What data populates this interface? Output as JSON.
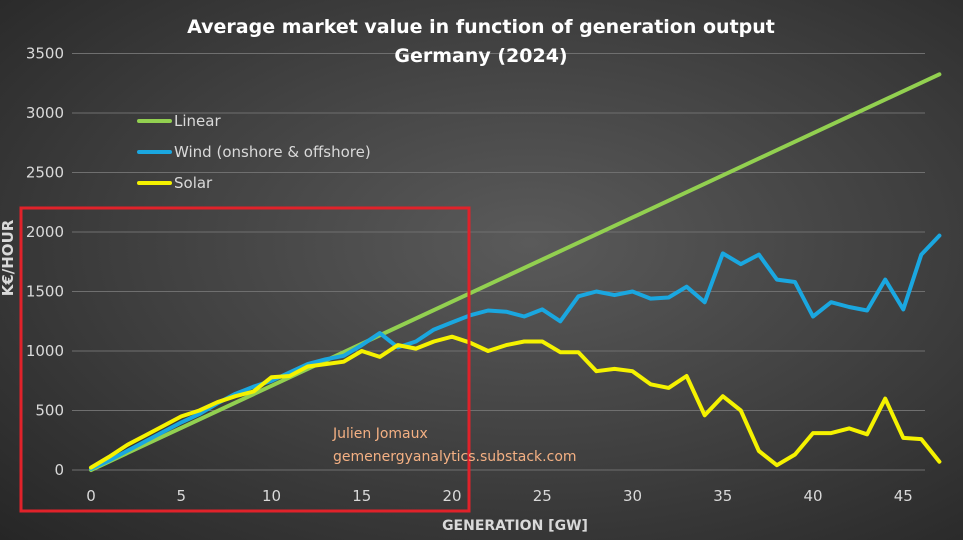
{
  "chart_data": {
    "type": "line",
    "title": "Average market value in function of generation output",
    "subtitle": "Germany (2024)",
    "xlabel": "GENERATION [GW]",
    "ylabel": "K€/HOUR",
    "xlim": [
      -1,
      47.5
    ],
    "ylim": [
      -100,
      3500
    ],
    "xticks": [
      0,
      5,
      10,
      15,
      20,
      25,
      30,
      35,
      40,
      45
    ],
    "yticks": [
      0,
      500,
      1000,
      1500,
      2000,
      2500,
      3000,
      3500
    ],
    "grid": "horizontal",
    "legend_position": "top-left",
    "series": [
      {
        "name": "Linear",
        "color": "#92d050",
        "x": [
          0,
          47
        ],
        "y": [
          0,
          3325
        ]
      },
      {
        "name": "Wind (onshore & offshore)",
        "color": "#1aa7e0",
        "x": [
          0,
          1,
          2,
          3,
          4,
          5,
          6,
          7,
          8,
          9,
          10,
          11,
          12,
          13,
          14,
          15,
          16,
          17,
          18,
          19,
          20,
          21,
          22,
          23,
          24,
          25,
          26,
          27,
          28,
          29,
          30,
          31,
          32,
          33,
          34,
          35,
          36,
          37,
          38,
          39,
          40,
          41,
          42,
          43,
          44,
          45,
          46,
          47
        ],
        "y": [
          10,
          80,
          160,
          240,
          320,
          400,
          470,
          560,
          640,
          700,
          750,
          820,
          890,
          930,
          960,
          1050,
          1150,
          1030,
          1080,
          1180,
          1240,
          1300,
          1340,
          1330,
          1290,
          1350,
          1250,
          1460,
          1500,
          1470,
          1500,
          1440,
          1450,
          1540,
          1410,
          1820,
          1730,
          1810,
          1600,
          1580,
          1290,
          1410,
          1370,
          1340,
          1600,
          1350,
          1810,
          1970
        ]
      },
      {
        "name": "Solar",
        "color": "#f5f200",
        "x": [
          0,
          1,
          2,
          3,
          4,
          5,
          6,
          7,
          8,
          9,
          10,
          11,
          12,
          13,
          14,
          15,
          16,
          17,
          18,
          19,
          20,
          21,
          22,
          23,
          24,
          25,
          26,
          27,
          28,
          29,
          30,
          31,
          32,
          33,
          34,
          35,
          36,
          37,
          38,
          39,
          40,
          41,
          42,
          43,
          44,
          45,
          46,
          47
        ],
        "y": [
          20,
          110,
          210,
          290,
          370,
          450,
          500,
          570,
          620,
          660,
          780,
          790,
          870,
          890,
          910,
          1000,
          950,
          1050,
          1020,
          1080,
          1120,
          1070,
          1000,
          1050,
          1080,
          1080,
          990,
          990,
          830,
          850,
          830,
          720,
          690,
          790,
          460,
          620,
          500,
          160,
          40,
          130,
          310,
          310,
          350,
          300,
          600,
          270,
          260,
          70
        ]
      }
    ]
  },
  "annotation_box": {
    "color": "#e0222a"
  },
  "watermark": {
    "author": "Julien Jomaux",
    "site": "gemenergyanalytics.substack.com",
    "color": "#f4b083"
  }
}
